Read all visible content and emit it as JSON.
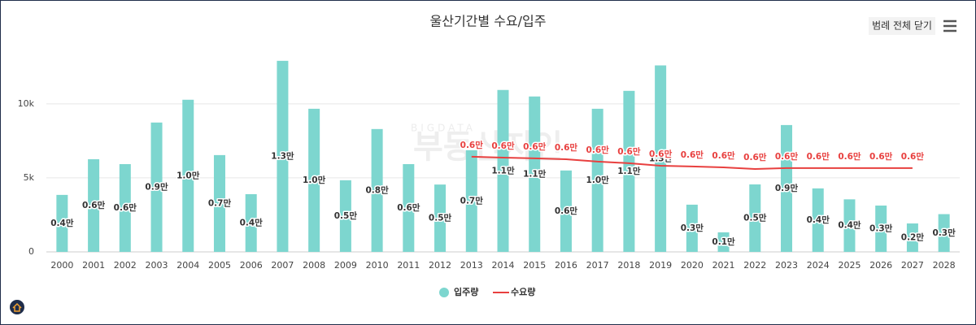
{
  "chart_data": {
    "type": "bar-line",
    "title": "울산기간별 수요/입주",
    "button": "범례 전체 닫기",
    "watermark": "부동산지인",
    "watermark_sub": "BIGDATA",
    "categories": [
      "2000",
      "2001",
      "2002",
      "2003",
      "2004",
      "2005",
      "2006",
      "2007",
      "2008",
      "2009",
      "2010",
      "2011",
      "2012",
      "2013",
      "2014",
      "2015",
      "2016",
      "2017",
      "2018",
      "2019",
      "2020",
      "2021",
      "2022",
      "2023",
      "2024",
      "2025",
      "2026",
      "2027",
      "2028"
    ],
    "ylim": [
      0,
      14000
    ],
    "yticks": [
      0,
      {
        "value": 5000,
        "label": "5k"
      },
      {
        "value": 10000,
        "label": "10k"
      }
    ],
    "grid": true,
    "legend": "bottom",
    "series": [
      {
        "name": "입주량",
        "type": "bar",
        "color": "#7dd6cf",
        "values": [
          3850,
          6260,
          5930,
          8740,
          10280,
          6540,
          3900,
          12910,
          9670,
          4840,
          8300,
          5930,
          4550,
          6870,
          10940,
          10500,
          5500,
          9670,
          10880,
          12600,
          3190,
          1320,
          4560,
          8570,
          4290,
          3550,
          3130,
          1920,
          2550
        ],
        "value_labels": [
          "0.4만",
          "0.6만",
          "0.6만",
          "0.9만",
          "1.0만",
          "0.7만",
          "0.4만",
          "1.3만",
          "1.0만",
          "0.5만",
          "0.8만",
          "0.6만",
          "0.5만",
          "0.7만",
          "1.1만",
          "1.1만",
          "0.6만",
          "1.0만",
          "1.1만",
          "1.3만",
          "0.3만",
          "0.1만",
          "0.5만",
          "0.9만",
          "0.4만",
          "0.4만",
          "0.3만",
          "0.2만",
          "0.3만"
        ]
      },
      {
        "name": "수요량",
        "type": "line",
        "color": "#e8403f",
        "values": [
          null,
          null,
          null,
          null,
          null,
          null,
          null,
          null,
          null,
          null,
          null,
          null,
          null,
          6430,
          6370,
          6320,
          6260,
          6100,
          5990,
          5820,
          5770,
          5710,
          5600,
          5660,
          5660,
          5660,
          5660,
          5660,
          null
        ],
        "value_labels": [
          null,
          null,
          null,
          null,
          null,
          null,
          null,
          null,
          null,
          null,
          null,
          null,
          null,
          "0.6만",
          "0.6만",
          "0.6만",
          "0.6만",
          "0.6만",
          "0.6만",
          "0.6만",
          "0.6만",
          "0.6만",
          "0.6만",
          "0.6만",
          "0.6만",
          "0.6만",
          "0.6만",
          "0.6만",
          null
        ]
      }
    ]
  }
}
